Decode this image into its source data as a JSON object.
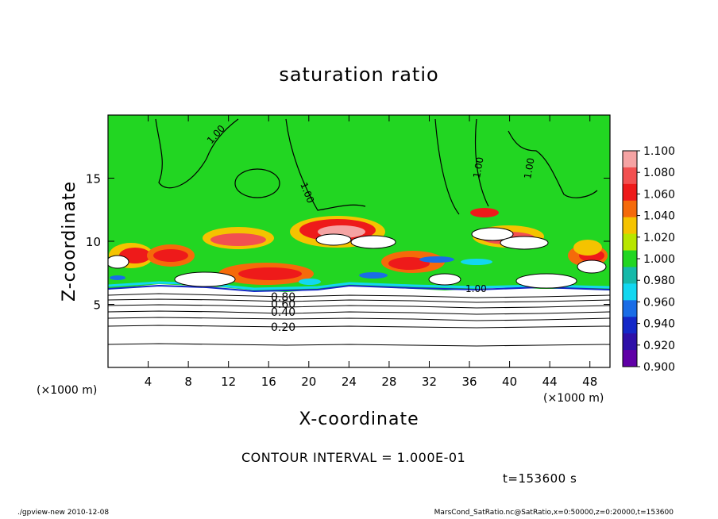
{
  "chart_data": {
    "type": "heatmap",
    "title": "saturation ratio",
    "xlabel": "X-coordinate",
    "ylabel": "Z-coordinate",
    "x_unit_left": "(×1000 m)",
    "x_unit_right": "(×1000 m)",
    "xlim": [
      0,
      50
    ],
    "ylim": [
      0,
      20
    ],
    "x_ticks": [
      4,
      8,
      12,
      16,
      20,
      24,
      28,
      32,
      36,
      40,
      44,
      48
    ],
    "y_ticks": [
      5,
      10,
      15
    ],
    "colorbar": {
      "levels": [
        "1.100",
        "1.080",
        "1.060",
        "1.040",
        "1.020",
        "1.000",
        "0.980",
        "0.960",
        "0.940",
        "0.920",
        "0.900"
      ],
      "colors": [
        "#f5a3a3",
        "#f25050",
        "#ee1a1a",
        "#f56a0a",
        "#f5c300",
        "#b8e600",
        "#22d622",
        "#16b9a9",
        "#12d7f0",
        "#1a6de6",
        "#1428c8",
        "#2e10a8",
        "#6000a6"
      ]
    },
    "contour_labels": [
      "1.00",
      "1.00",
      "1.00",
      "1.00",
      "1.00",
      "0.80",
      "0.60",
      "0.40",
      "0.20"
    ],
    "contour_interval_text": "CONTOUR INTERVAL = 1.000E-01",
    "time_text": "t=153600 s",
    "grid": false
  },
  "footer": {
    "left": "./gpview-new  2010-12-08",
    "right": "MarsCond_SatRatio.nc@SatRatio,x=0:50000,z=0:20000,t=153600"
  },
  "colors": {
    "green": "#22d622",
    "axes": "#000000",
    "background": "#ffffff"
  }
}
